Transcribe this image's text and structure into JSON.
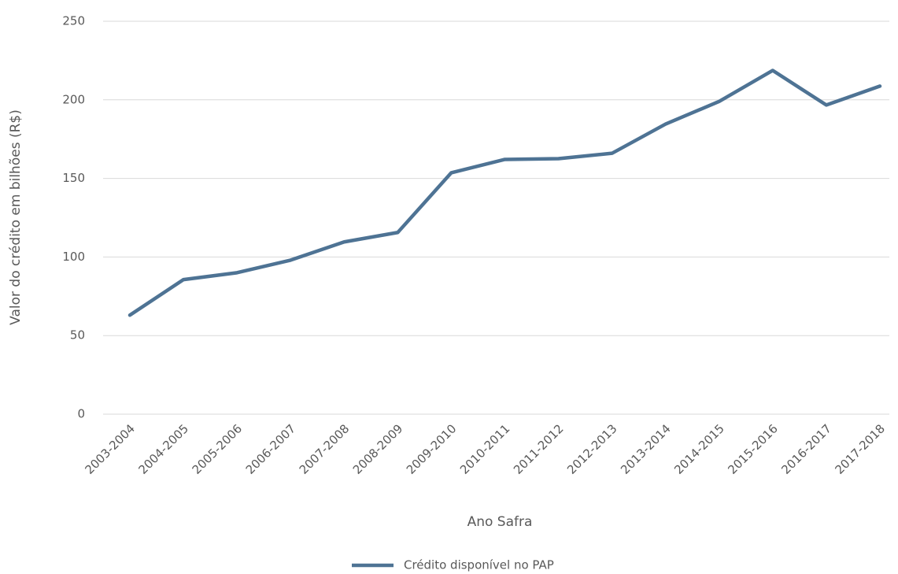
{
  "chart_data": {
    "type": "line",
    "x_label": "Ano Safra",
    "y_label": "Valor do crédito em bilhões (R$)",
    "categories": [
      "2003-2004",
      "2004-2005",
      "2005-2006",
      "2006-2007",
      "2007-2008",
      "2008-2009",
      "2009-2010",
      "2010-2011",
      "2011-2012",
      "2012-2013",
      "2013-2014",
      "2014-2015",
      "2015-2016",
      "2016-2017",
      "2017-2018"
    ],
    "series": [
      {
        "name": "Crédito disponível no PAP",
        "color": "#4e7394",
        "values": [
          63,
          85.6,
          90,
          98,
          109.6,
          115.6,
          153.6,
          162.1,
          162.6,
          166,
          184.6,
          199,
          218.7,
          196.7,
          208.7
        ]
      }
    ],
    "ylim": [
      0,
      250
    ],
    "yticks": [
      0,
      50,
      100,
      150,
      200,
      250
    ],
    "grid": true,
    "legend": "bottom"
  }
}
